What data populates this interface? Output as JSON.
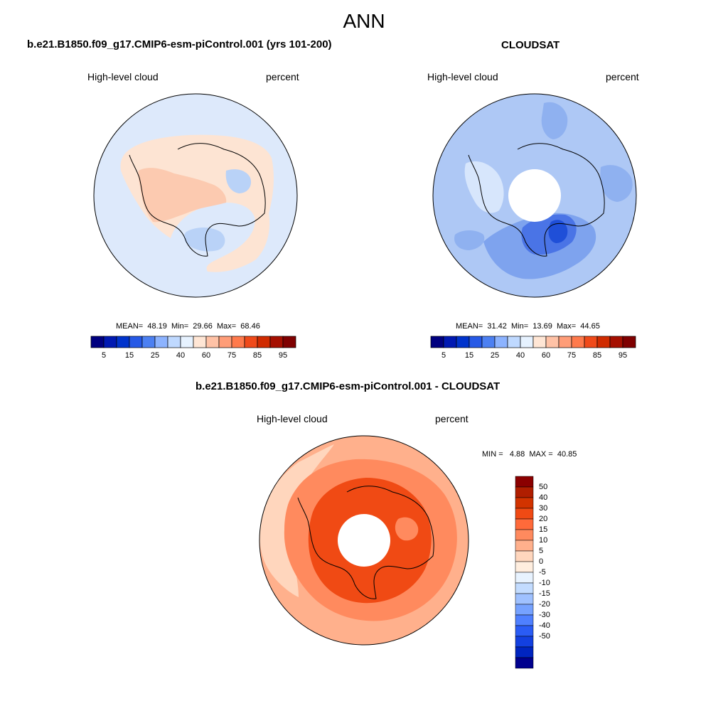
{
  "page": {
    "title": "ANN"
  },
  "chart_data": [
    {
      "type": "heatmap",
      "projection": "south-polar-stereographic",
      "title": "b.e21.B1850.f09_g17.CMIP6-esm-piControl.001 (yrs 101-200)",
      "left_label": "High-level cloud",
      "right_label": "percent",
      "stats": {
        "mean_label": "MEAN=",
        "mean": "48.19",
        "min_label": "Min=",
        "min": "29.66",
        "max_label": "Max=",
        "max": "68.46"
      },
      "colorbar": {
        "orientation": "horizontal",
        "colors": [
          "#00007f",
          "#0019b2",
          "#0033cc",
          "#2659e6",
          "#4c80f2",
          "#8cb3ff",
          "#bfd9ff",
          "#e6f2ff",
          "#ffe6d5",
          "#ffc2a6",
          "#ff9d78",
          "#ff7a4c",
          "#f04a1a",
          "#d02b00",
          "#a50f00",
          "#7f0000"
        ],
        "tick_labels": [
          "5",
          "15",
          "25",
          "40",
          "60",
          "75",
          "85",
          "95"
        ]
      }
    },
    {
      "type": "heatmap",
      "projection": "south-polar-stereographic",
      "title": "CLOUDSAT",
      "left_label": "High-level cloud",
      "right_label": "percent",
      "stats": {
        "mean_label": "MEAN=",
        "mean": "31.42",
        "min_label": "Min=",
        "min": "13.69",
        "max_label": "Max=",
        "max": "44.65"
      },
      "colorbar": {
        "orientation": "horizontal",
        "tick_labels": [
          "5",
          "15",
          "25",
          "40",
          "60",
          "75",
          "85",
          "95"
        ]
      }
    },
    {
      "type": "heatmap",
      "projection": "south-polar-stereographic",
      "title": "b.e21.B1850.f09_g17.CMIP6-esm-piControl.001 - CLOUDSAT",
      "left_label": "High-level cloud",
      "right_label": "percent",
      "stats": {
        "min_label": "MIN =",
        "min": "4.88",
        "max_label": "MAX =",
        "max": "40.85"
      },
      "colorbar": {
        "orientation": "vertical",
        "colors": [
          "#8b0000",
          "#b01e00",
          "#d23300",
          "#f04a14",
          "#ff6a3a",
          "#ff8a5e",
          "#ffb08c",
          "#ffd6bd",
          "#ffeedf",
          "#e8f3ff",
          "#c3dcff",
          "#9fc1ff",
          "#76a2ff",
          "#4f80ff",
          "#2a5cf5",
          "#1340e0",
          "#0025c0",
          "#00008e"
        ],
        "tick_labels": [
          "50",
          "40",
          "30",
          "20",
          "15",
          "10",
          "5",
          "0",
          "-5",
          "-10",
          "-15",
          "-20",
          "-30",
          "-40",
          "-50"
        ]
      }
    }
  ]
}
